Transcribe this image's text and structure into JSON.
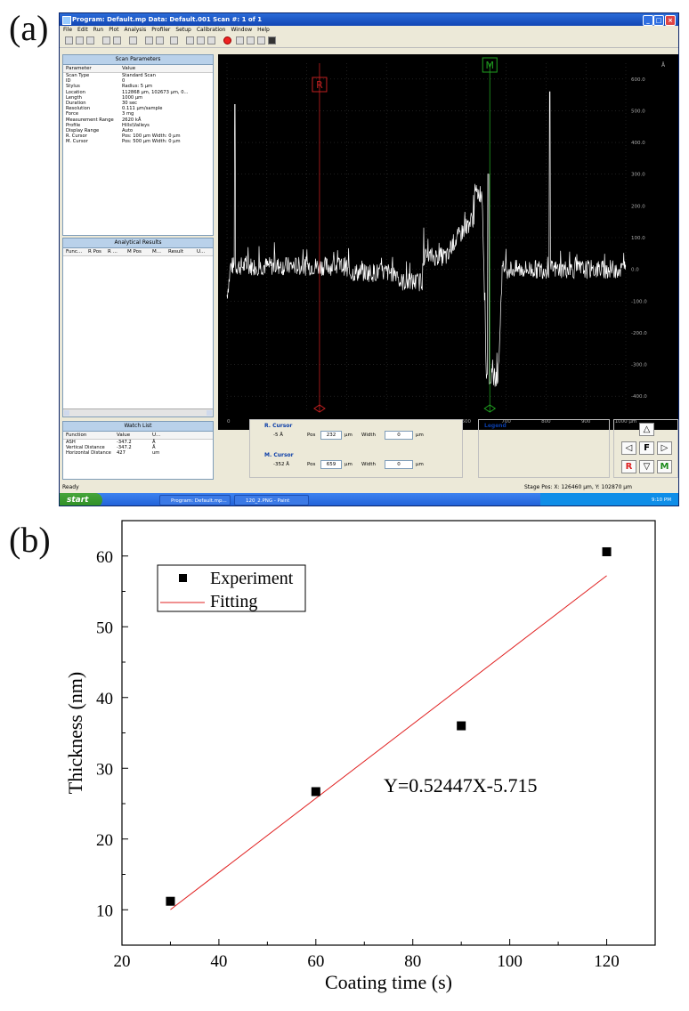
{
  "panel_a_label": "(a)",
  "panel_b_label": "(b)",
  "window": {
    "title": "Program: Default.mp   Data: Default.001   Scan #: 1 of 1",
    "menu": [
      "File",
      "Edit",
      "Run",
      "Plot",
      "Analysis",
      "Profiler",
      "Setup",
      "Calibration",
      "Window",
      "Help"
    ]
  },
  "scan_parameters": {
    "header": "Scan Parameters",
    "col_param": "Parameter",
    "col_value": "Value",
    "rows": [
      [
        "Scan Type",
        "Standard Scan"
      ],
      [
        "ID",
        "0"
      ],
      [
        "Stylus",
        "Radius: 5 µm"
      ],
      [
        "Location",
        "112868 µm, 102673 µm, 0..."
      ],
      [
        "Length",
        "1000 µm"
      ],
      [
        "Duration",
        "30 sec"
      ],
      [
        "Resolution",
        "0.111 µm/sample"
      ],
      [
        "Force",
        "3 mg"
      ],
      [
        "Measurement Range",
        "2620 kÅ"
      ],
      [
        "Profile",
        "Hills\\Valleys"
      ],
      [
        "Display Range",
        "Auto"
      ],
      [
        "R. Cursor",
        "Pos: 100 µm Width: 0 µm"
      ],
      [
        "M. Cursor",
        "Pos: 500 µm Width: 0 µm"
      ]
    ]
  },
  "analytical_results": {
    "header": "Analytical Results",
    "columns": [
      "Func...",
      "R Pos",
      "R ...",
      "M Pos",
      "M...",
      "Result",
      "U..."
    ]
  },
  "watch_list": {
    "header": "Watch List",
    "columns": [
      "Function",
      "Value",
      "U..."
    ],
    "rows": [
      [
        "ASH",
        "-347.2",
        "Å"
      ],
      [
        "Vertical Distance",
        "-347.2",
        "Å"
      ],
      [
        "Horizontal Distance",
        "427",
        "um"
      ]
    ]
  },
  "profile_plot": {
    "unit_label": "Å",
    "y_ticks": [
      "600.0",
      "500.0",
      "400.0",
      "300.0",
      "200.0",
      "100.0",
      "0.0",
      "-100.0",
      "-200.0",
      "-300.0",
      "-400.0"
    ],
    "x_ticks": [
      "0",
      "100",
      "200",
      "300",
      "400",
      "500",
      "600",
      "700",
      "800",
      "900",
      "1000 µm"
    ],
    "r_marker": "R",
    "m_marker": "M"
  },
  "cursors": {
    "r_label": "R. Cursor",
    "r_value": "-5 Å",
    "r_pos": "232",
    "r_width": "0",
    "m_label": "M. Cursor",
    "m_value": "-352 Å",
    "m_pos": "659",
    "m_width": "0",
    "pos_label": "Pos",
    "width_label": "Width",
    "unit": "µm"
  },
  "legend_title": "Legend",
  "nav": {
    "f": "F",
    "r": "R",
    "m": "M"
  },
  "status": {
    "left": "Ready",
    "stage": "Stage Pos:    X: 126460 µm, Y: 102870 µm"
  },
  "taskbar": {
    "start": "start",
    "task1": "Program: Default.mp...",
    "task2": "120_2.PNG - Paint",
    "clock": "9:10 PM"
  },
  "colors": {
    "fit_line": "#e02020",
    "points": "#000000",
    "profile_trace": "#ffffff",
    "r_cursor": "#c02020",
    "m_cursor": "#20a020"
  },
  "chart_data": {
    "type": "scatter",
    "xlabel": "Coating time (s)",
    "ylabel": "Thickness (nm)",
    "xlim": [
      20,
      130
    ],
    "ylim": [
      5,
      65
    ],
    "x_ticks": [
      20,
      40,
      60,
      80,
      100,
      120
    ],
    "y_ticks": [
      10,
      20,
      30,
      40,
      50,
      60
    ],
    "series": [
      {
        "name": "Experiment",
        "x": [
          30,
          60,
          90,
          120
        ],
        "y": [
          11.2,
          26.7,
          36.0,
          60.6
        ]
      },
      {
        "name": "Fitting",
        "x": [
          30,
          120
        ],
        "y": [
          10.02,
          57.22
        ]
      }
    ],
    "annotation": "Y=0.52447X-5.715",
    "legend_position": "top-left",
    "grid": false
  }
}
